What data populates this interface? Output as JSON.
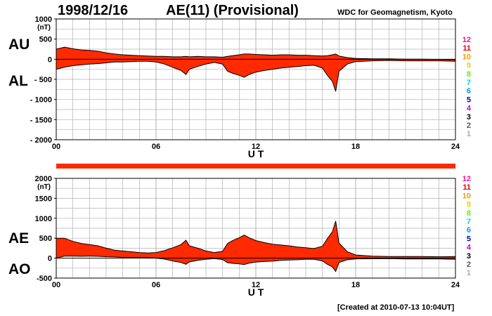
{
  "header": {
    "date": "1998/12/16",
    "title": "AE(11) (Provisional)",
    "org": "WDC for Geomagnetism, Kyoto"
  },
  "footer": {
    "created": "[Created at 2010-07-13 10:04UT]"
  },
  "colors": {
    "fill": "#ff2a00",
    "outline": "#000000",
    "grid": "#b0b0b0",
    "bar": "#ff2a00"
  },
  "legend": {
    "items": [
      {
        "label": "12",
        "color": "#ff1493"
      },
      {
        "label": "11",
        "color": "#e00000"
      },
      {
        "label": "10",
        "color": "#ff9900"
      },
      {
        "label": "9",
        "color": "#d8d800"
      },
      {
        "label": "8",
        "color": "#66ee00"
      },
      {
        "label": "7",
        "color": "#00d8d8"
      },
      {
        "label": "6",
        "color": "#0099ff"
      },
      {
        "label": "5",
        "color": "#0000cc"
      },
      {
        "label": "4",
        "color": "#cc00cc"
      },
      {
        "label": "3",
        "color": "#000000"
      },
      {
        "label": "2",
        "color": "#555555"
      },
      {
        "label": "1",
        "color": "#aaaaaa"
      }
    ]
  },
  "chart_data": [
    {
      "type": "area",
      "name": "AU/AL",
      "label_top": "AU",
      "label_bottom": "AL",
      "unit": "(nT)",
      "xlabel": "U T",
      "xlim": [
        0,
        24
      ],
      "xticks": [
        "00",
        "06",
        "12",
        "18",
        "24"
      ],
      "ylim": [
        -2000,
        1000
      ],
      "yticks": [
        "1000",
        "500",
        "0",
        "- 500",
        "- 1000",
        "- 1500",
        "- 2000"
      ],
      "grid": true,
      "series": [
        {
          "name": "AU",
          "x": [
            0,
            0.5,
            1,
            1.5,
            2,
            2.5,
            3,
            3.5,
            4,
            4.5,
            5,
            5.5,
            6,
            6.5,
            7,
            7.5,
            7.8,
            8,
            8.5,
            9,
            9.5,
            10,
            10.3,
            10.6,
            11,
            11.3,
            11.6,
            12,
            12.5,
            13,
            13.5,
            14,
            14.5,
            15,
            15.5,
            16,
            16.3,
            16.6,
            16.8,
            17,
            17.5,
            18,
            19,
            20,
            21,
            22,
            23,
            24
          ],
          "values": [
            250,
            300,
            260,
            230,
            220,
            200,
            160,
            130,
            110,
            100,
            90,
            80,
            70,
            70,
            60,
            60,
            70,
            60,
            70,
            60,
            60,
            50,
            70,
            90,
            110,
            130,
            130,
            120,
            110,
            100,
            110,
            110,
            100,
            100,
            90,
            80,
            90,
            110,
            130,
            80,
            40,
            20,
            10,
            10,
            0,
            0,
            -5,
            -10
          ]
        },
        {
          "name": "AL",
          "x": [
            0,
            0.5,
            1,
            1.5,
            2,
            2.5,
            3,
            3.5,
            4,
            4.5,
            5,
            5.5,
            6,
            6.5,
            7,
            7.5,
            7.8,
            8,
            8.5,
            9,
            9.5,
            10,
            10.3,
            10.6,
            11,
            11.3,
            11.6,
            12,
            12.5,
            13,
            13.5,
            14,
            14.5,
            15,
            15.5,
            16,
            16.3,
            16.6,
            16.8,
            17,
            17.5,
            18,
            19,
            20,
            21,
            22,
            23,
            24
          ],
          "values": [
            -250,
            -200,
            -160,
            -140,
            -120,
            -110,
            -90,
            -70,
            -70,
            -60,
            -50,
            -50,
            -70,
            -120,
            -200,
            -280,
            -380,
            -250,
            -180,
            -120,
            -80,
            -120,
            -300,
            -350,
            -400,
            -450,
            -380,
            -320,
            -280,
            -250,
            -220,
            -200,
            -180,
            -160,
            -150,
            -220,
            -400,
            -550,
            -800,
            -300,
            -120,
            -60,
            -40,
            -30,
            -40,
            -40,
            -40,
            -50
          ]
        }
      ]
    },
    {
      "type": "area",
      "name": "AE/AO",
      "label_top": "AE",
      "label_bottom": "AO",
      "unit": "(nT)",
      "xlabel": "U T",
      "xlim": [
        0,
        24
      ],
      "xticks": [
        "00",
        "06",
        "12",
        "18",
        "24"
      ],
      "ylim": [
        -500,
        2000
      ],
      "yticks": [
        "2000",
        "1500",
        "1000",
        "500",
        "0",
        "-500"
      ],
      "grid": true,
      "series": [
        {
          "name": "AE",
          "x": [
            0,
            0.5,
            1,
            1.5,
            2,
            2.5,
            3,
            3.5,
            4,
            4.5,
            5,
            5.5,
            6,
            6.5,
            7,
            7.5,
            7.8,
            8,
            8.5,
            9,
            9.5,
            10,
            10.3,
            10.6,
            11,
            11.3,
            11.6,
            12,
            12.5,
            13,
            13.5,
            14,
            14.5,
            15,
            15.5,
            16,
            16.3,
            16.6,
            16.8,
            17,
            17.5,
            18,
            19,
            20,
            21,
            22,
            23,
            24
          ],
          "values": [
            500,
            500,
            420,
            370,
            340,
            310,
            250,
            200,
            180,
            160,
            140,
            130,
            140,
            190,
            260,
            340,
            450,
            310,
            250,
            180,
            140,
            170,
            370,
            440,
            510,
            580,
            510,
            440,
            390,
            350,
            330,
            310,
            280,
            260,
            240,
            300,
            490,
            660,
            930,
            380,
            160,
            80,
            50,
            40,
            40,
            40,
            35,
            40
          ]
        },
        {
          "name": "AO",
          "x": [
            0,
            0.5,
            1,
            1.5,
            2,
            2.5,
            3,
            3.5,
            4,
            4.5,
            5,
            5.5,
            6,
            6.5,
            7,
            7.5,
            7.8,
            8,
            8.5,
            9,
            9.5,
            10,
            10.3,
            10.6,
            11,
            11.3,
            11.6,
            12,
            12.5,
            13,
            13.5,
            14,
            14.5,
            15,
            15.5,
            16,
            16.3,
            16.6,
            16.8,
            17,
            17.5,
            18,
            19,
            20,
            21,
            22,
            23,
            24
          ],
          "values": [
            0,
            50,
            50,
            45,
            50,
            45,
            35,
            30,
            20,
            20,
            20,
            15,
            0,
            -25,
            -70,
            -110,
            -155,
            -95,
            -55,
            -30,
            -10,
            -35,
            -115,
            -130,
            -145,
            -160,
            -125,
            -100,
            -85,
            -75,
            -55,
            -45,
            -40,
            -30,
            -30,
            -70,
            -155,
            -220,
            -335,
            -110,
            -40,
            -20,
            -15,
            -10,
            -20,
            -20,
            -22,
            -30
          ]
        }
      ]
    }
  ]
}
